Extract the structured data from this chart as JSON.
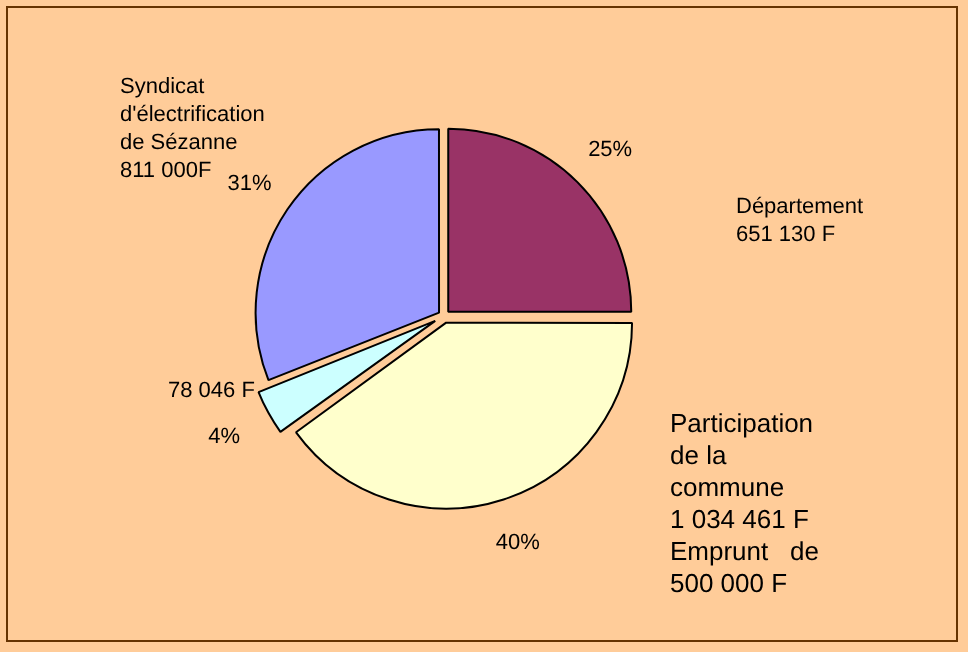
{
  "chart_data": {
    "type": "pie",
    "categories": [
      "Département\n651 130 F",
      "Participation\nde la\ncommune\n1 034 461 F\nEmprunt   de\n500 000 F",
      "78 046 F",
      "Syndicat\nd'électrification\nde Sézanne\n811 000F"
    ],
    "values": [
      25,
      40,
      4,
      31
    ],
    "colors": [
      "#993366",
      "#ffffcc",
      "#ccffff",
      "#9999ff"
    ],
    "value_labels": [
      "25%",
      "40%",
      "4%",
      "31%"
    ],
    "legend": false
  }
}
